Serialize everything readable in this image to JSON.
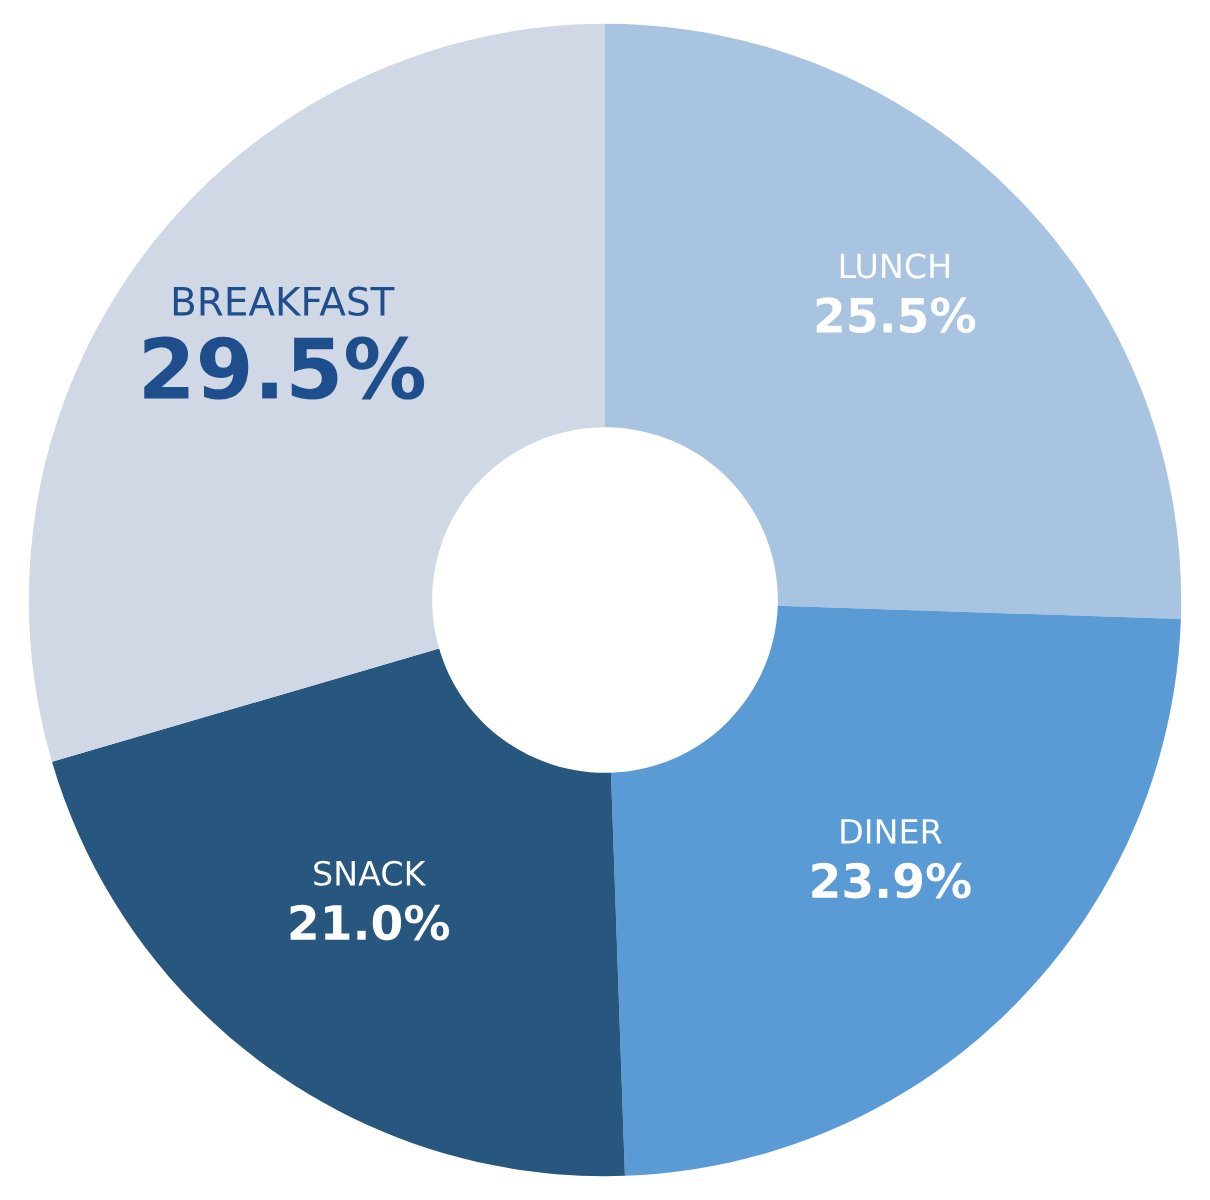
{
  "chart_data": {
    "type": "donut",
    "categories": [
      "LUNCH",
      "DINER",
      "SNACK",
      "BREAKFAST"
    ],
    "values": [
      25.5,
      23.9,
      21.0,
      29.5
    ],
    "colors": [
      "#a8c4e0",
      "#5b9bd5",
      "#27567e",
      "#d0d8e6"
    ],
    "value_labels": [
      "25.5%",
      "23.9%",
      "21.0%",
      "29.5%"
    ],
    "legend": false
  }
}
